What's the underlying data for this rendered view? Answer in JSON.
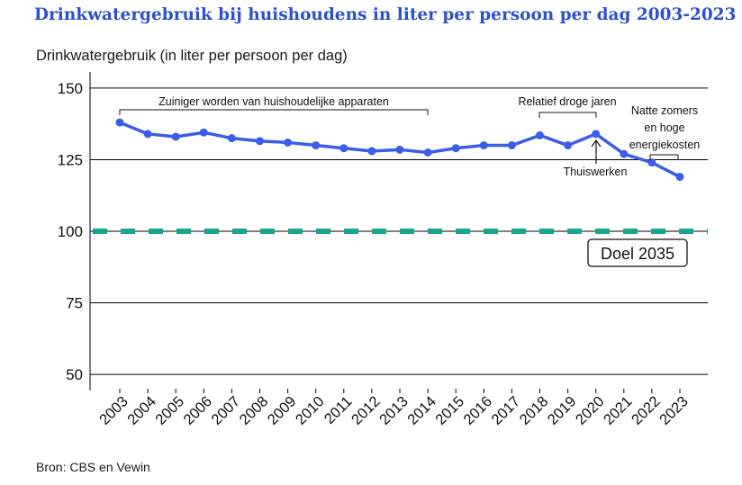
{
  "page": {
    "title": "Drinkwatergebruik bij huishoudens in liter per persoon per dag 2003-2023",
    "source": "Bron: CBS en Vewin"
  },
  "colors": {
    "title": "#2b52c9",
    "series": "#3b5ee8",
    "goal": "#1aa58e"
  },
  "chart_data": {
    "type": "line",
    "title": "Drinkwatergebruik bij huishoudens in liter per persoon per dag 2003-2023",
    "ylabel": "Drinkwatergebruik (in liter per persoon per dag)",
    "xlabel": "",
    "ylim": [
      45,
      155
    ],
    "yticks": [
      "150",
      "125",
      "100",
      "75",
      "50"
    ],
    "grid": true,
    "x": [
      "2003",
      "2004",
      "2005",
      "2006",
      "2007",
      "2008",
      "2009",
      "2010",
      "2011",
      "2012",
      "2013",
      "2014",
      "2015",
      "2016",
      "2017",
      "2018",
      "2019",
      "2020",
      "2021",
      "2022",
      "2023"
    ],
    "series": [
      {
        "values": [
          138,
          134,
          133,
          134.5,
          132.5,
          131.5,
          131,
          130,
          129,
          128,
          128.5,
          127.5,
          129,
          130,
          130,
          133.5,
          130,
          134,
          127,
          124,
          119
        ]
      }
    ],
    "goal": {
      "value": 100,
      "label": "Doel 2035"
    },
    "annotations": [
      "Zuiniger worden van huishoudelijke apparaten",
      "Relatief droge jaren",
      "Thuiswerken",
      "Natte zomers",
      "en hoge",
      "energiekosten"
    ]
  }
}
